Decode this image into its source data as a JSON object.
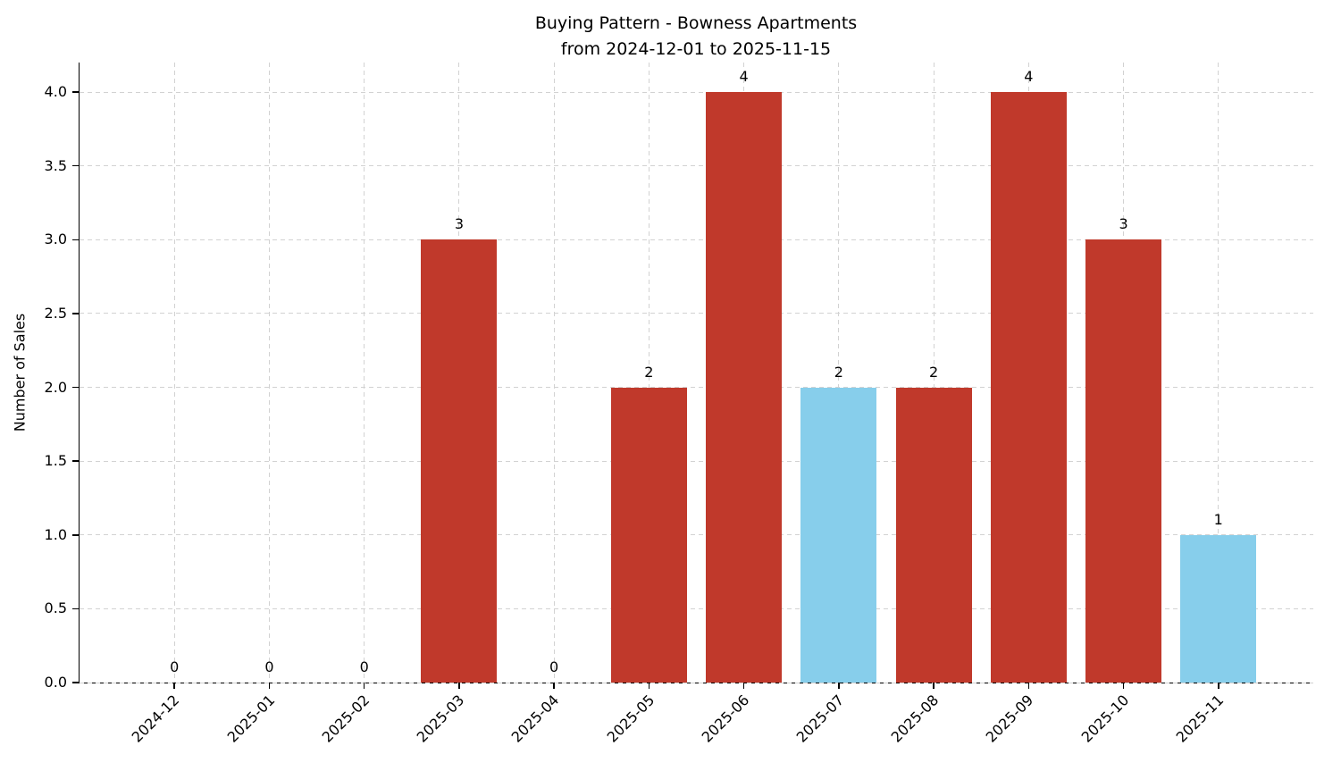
{
  "figure": {
    "title_line1": "Buying Pattern - Bowness Apartments",
    "title_line2": "from 2024-12-01 to 2025-11-15"
  },
  "chart_data": {
    "type": "bar",
    "title": "Buying Pattern - Bowness Apartments\nfrom 2024-12-01 to 2025-11-15",
    "categories": [
      "2024-12",
      "2025-01",
      "2025-02",
      "2025-03",
      "2025-04",
      "2025-05",
      "2025-06",
      "2025-07",
      "2025-08",
      "2025-09",
      "2025-10",
      "2025-11"
    ],
    "values": [
      0,
      0,
      0,
      3,
      0,
      2,
      4,
      2,
      2,
      4,
      3,
      1
    ],
    "value_labels": [
      "0",
      "0",
      "0",
      "3",
      "0",
      "2",
      "4",
      "2",
      "2",
      "4",
      "3",
      "1"
    ],
    "bar_colors": [
      "#c0392b",
      "#c0392b",
      "#c0392b",
      "#c0392b",
      "#c0392b",
      "#c0392b",
      "#c0392b",
      "#87ceeb",
      "#c0392b",
      "#c0392b",
      "#c0392b",
      "#87ceeb"
    ],
    "xlabel": "",
    "ylabel": "Number of Sales",
    "ylim": [
      0,
      4.2
    ],
    "yticks": [
      0.0,
      0.5,
      1.0,
      1.5,
      2.0,
      2.5,
      3.0,
      3.5,
      4.0
    ],
    "ytick_labels": [
      "0.0",
      "0.5",
      "1.0",
      "1.5",
      "2.0",
      "2.5",
      "3.0",
      "3.5",
      "4.0"
    ],
    "grid": true,
    "grid_style": "dashed",
    "legend": false,
    "xtick_rotation": 45
  },
  "colors": {
    "bar_default": "#c0392b",
    "bar_highlight": "#87ceeb",
    "grid": "#d2d2d2",
    "axis": "#000000",
    "background": "#ffffff"
  }
}
